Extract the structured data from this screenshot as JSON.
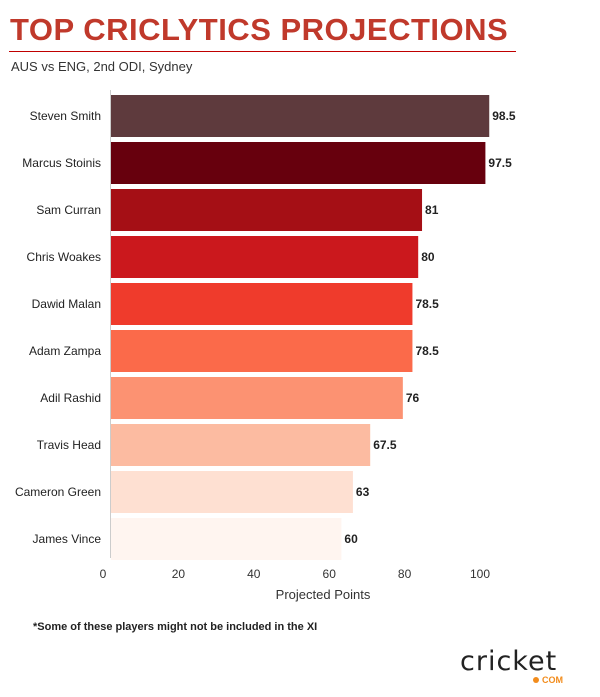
{
  "header": {
    "title": "TOP CRICLYTICS PROJECTIONS",
    "subtitle": "AUS vs ENG, 2nd ODI, Sydney"
  },
  "footnote": "*Some of these players might not be included in the XI",
  "logo": {
    "word": "cricket",
    "suffix": "COM"
  },
  "chart_data": {
    "type": "bar",
    "orientation": "horizontal",
    "categories": [
      "Steven Smith",
      "Marcus Stoinis",
      "Sam Curran",
      "Chris Woakes",
      "Dawid Malan",
      "Adam Zampa",
      "Adil Rashid",
      "Travis Head",
      "Cameron Green",
      "James Vince"
    ],
    "values": [
      98.5,
      97.5,
      81,
      80,
      78.5,
      78.5,
      76,
      67.5,
      63,
      60
    ],
    "value_labels": [
      "98.5",
      "97.5",
      "81",
      "80",
      "78.5",
      "78.5",
      "76",
      "67.5",
      "63",
      "60"
    ],
    "colors": [
      "#5e3a3d",
      "#67000d",
      "#a50f15",
      "#cb181d",
      "#ef3b2c",
      "#fb6a4a",
      "#fc9272",
      "#fcbba1",
      "#fee0d2",
      "#fff5f0"
    ],
    "xlabel": "Projected Points",
    "ylabel": "",
    "xlim": [
      0,
      100
    ],
    "xticks": [
      "0",
      "20",
      "40",
      "60",
      "80",
      "100"
    ],
    "grid": false
  }
}
